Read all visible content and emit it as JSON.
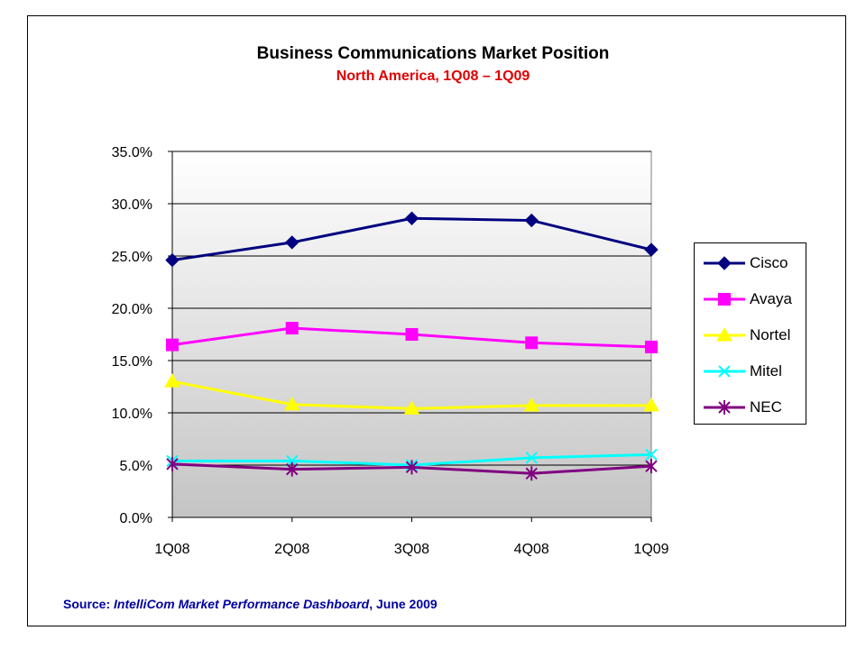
{
  "chart_data": {
    "type": "line",
    "title": "Business Communications Market Position",
    "subtitle": "North America, 1Q08 – 1Q09",
    "categories": [
      "1Q08",
      "2Q08",
      "3Q08",
      "4Q08",
      "1Q09"
    ],
    "ylim": [
      0,
      35
    ],
    "yticks": [
      "0.0%",
      "5.0%",
      "10.0%",
      "15.0%",
      "20.0%",
      "25.0%",
      "30.0%",
      "35.0%"
    ],
    "ytick_values": [
      0,
      5,
      10,
      15,
      20,
      25,
      30,
      35
    ],
    "grid": true,
    "legend_position": "right",
    "series": [
      {
        "name": "Cisco",
        "values": [
          24.6,
          26.3,
          28.6,
          28.4,
          25.6
        ],
        "color": "#000080",
        "marker": "diamond"
      },
      {
        "name": "Avaya",
        "values": [
          16.5,
          18.1,
          17.5,
          16.7,
          16.3
        ],
        "color": "#ff00ff",
        "marker": "square"
      },
      {
        "name": "Nortel",
        "values": [
          13.0,
          10.8,
          10.4,
          10.7,
          10.7
        ],
        "color": "#ffff00",
        "marker": "triangle"
      },
      {
        "name": "Mitel",
        "values": [
          5.4,
          5.4,
          5.0,
          5.7,
          6.0
        ],
        "color": "#00ffff",
        "marker": "x"
      },
      {
        "name": "NEC",
        "values": [
          5.1,
          4.6,
          4.8,
          4.2,
          4.9
        ],
        "color": "#800080",
        "marker": "star"
      }
    ]
  },
  "source": {
    "prefix": "Source: ",
    "name": "IntelliCom Market Performance Dashboard",
    "suffix": ", June 2009"
  }
}
